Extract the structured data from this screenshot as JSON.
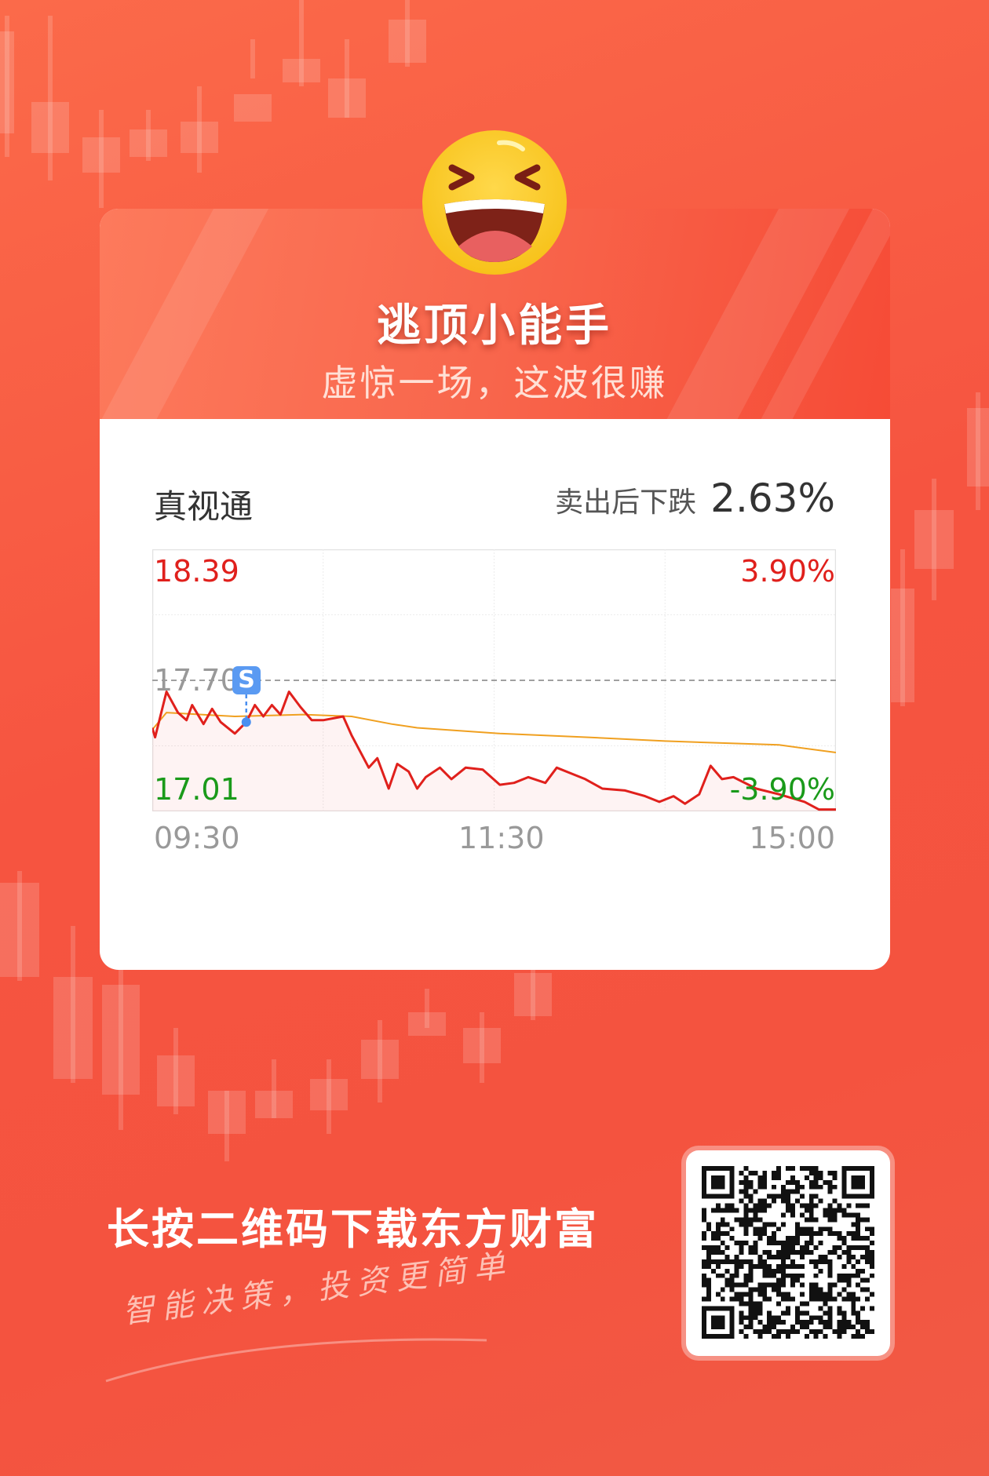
{
  "header": {
    "title": "逃顶小能手",
    "subtitle": "虚惊一场，这波很赚",
    "emoji_icon": "laughing-face"
  },
  "stock": {
    "name": "真视通",
    "drop_label": "卖出后下跌",
    "drop_value": "2.63%"
  },
  "chart_data": {
    "type": "line",
    "xlabels": [
      "09:30",
      "11:30",
      "15:00"
    ],
    "ylim": [
      17.01,
      18.39
    ],
    "prev_close": "17.70",
    "y_labels_left": {
      "top": "18.39",
      "bottom": "17.01",
      "middle": "17.70"
    },
    "y_labels_right": {
      "top": "3.90%",
      "bottom": "-3.90%"
    },
    "grid": true,
    "sell_marker": {
      "label": "S",
      "time": "10:03",
      "price": 17.48
    },
    "colors": {
      "price": "#e0201c",
      "avg": "#f0a020",
      "up": "#e0201c",
      "down": "#1a9a1a",
      "marker": "#4a8ff0"
    },
    "series": [
      {
        "key": "price",
        "points": [
          [
            "09:30",
            17.45
          ],
          [
            "09:31",
            17.4
          ],
          [
            "09:35",
            17.64
          ],
          [
            "09:39",
            17.53
          ],
          [
            "09:42",
            17.49
          ],
          [
            "09:44",
            17.57
          ],
          [
            "09:48",
            17.47
          ],
          [
            "09:51",
            17.55
          ],
          [
            "09:54",
            17.48
          ],
          [
            "09:59",
            17.42
          ],
          [
            "10:03",
            17.48
          ],
          [
            "10:06",
            17.57
          ],
          [
            "10:09",
            17.51
          ],
          [
            "10:12",
            17.57
          ],
          [
            "10:15",
            17.52
          ],
          [
            "10:18",
            17.64
          ],
          [
            "10:22",
            17.56
          ],
          [
            "10:26",
            17.49
          ],
          [
            "10:30",
            17.49
          ],
          [
            "10:37",
            17.51
          ],
          [
            "10:40",
            17.41
          ],
          [
            "10:46",
            17.24
          ],
          [
            "10:49",
            17.29
          ],
          [
            "10:53",
            17.13
          ],
          [
            "10:56",
            17.26
          ],
          [
            "11:00",
            17.22
          ],
          [
            "11:03",
            17.13
          ],
          [
            "11:06",
            17.19
          ],
          [
            "11:11",
            17.24
          ],
          [
            "11:15",
            17.18
          ],
          [
            "11:20",
            17.24
          ],
          [
            "11:26",
            17.23
          ],
          [
            "13:02",
            17.15
          ],
          [
            "13:07",
            17.16
          ],
          [
            "13:12",
            17.19
          ],
          [
            "13:18",
            17.16
          ],
          [
            "13:22",
            17.24
          ],
          [
            "13:27",
            17.21
          ],
          [
            "13:32",
            17.18
          ],
          [
            "13:38",
            17.13
          ],
          [
            "13:46",
            17.12
          ],
          [
            "13:53",
            17.09
          ],
          [
            "13:58",
            17.06
          ],
          [
            "14:03",
            17.09
          ],
          [
            "14:07",
            17.05
          ],
          [
            "14:12",
            17.1
          ],
          [
            "14:16",
            17.25
          ],
          [
            "14:20",
            17.18
          ],
          [
            "14:24",
            17.19
          ],
          [
            "14:32",
            17.13
          ],
          [
            "14:40",
            17.1
          ],
          [
            "14:49",
            17.06
          ],
          [
            "14:54",
            17.02
          ],
          [
            "15:00",
            17.02
          ]
        ]
      },
      {
        "key": "avg",
        "points": [
          [
            "09:30",
            17.44
          ],
          [
            "09:35",
            17.53
          ],
          [
            "09:59",
            17.51
          ],
          [
            "10:23",
            17.52
          ],
          [
            "10:40",
            17.51
          ],
          [
            "10:54",
            17.47
          ],
          [
            "11:03",
            17.45
          ],
          [
            "13:02",
            17.42
          ],
          [
            "13:33",
            17.4
          ],
          [
            "14:00",
            17.38
          ],
          [
            "14:20",
            17.37
          ],
          [
            "14:40",
            17.36
          ],
          [
            "15:00",
            17.32
          ]
        ]
      }
    ]
  },
  "footer": {
    "tagline": "长按二维码下载东方财富",
    "slogan": "智能决策，投资更简单",
    "qr_icon": "qr-code"
  }
}
